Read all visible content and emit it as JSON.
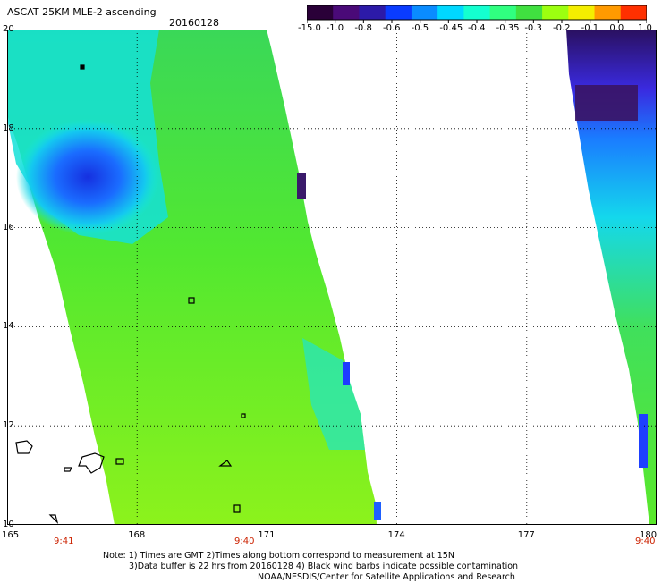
{
  "header": {
    "title": "ASCAT 25KM MLE-2 ascending",
    "date": "20160128"
  },
  "colorbar": {
    "labels": [
      "-15.0",
      "-1.0",
      "-0.8",
      "-0.6",
      "-0.5",
      "-0.45",
      "-0.4",
      "-0.35",
      "-0.3",
      "-0.2",
      "-0.1",
      "0.0",
      "1.0"
    ],
    "colors": [
      "#2a0038",
      "#4a0a78",
      "#2c1aa8",
      "#0a3cff",
      "#0a8cff",
      "#00d8ff",
      "#14ffd0",
      "#30ff80",
      "#40e040",
      "#9cff10",
      "#f4ee00",
      "#ff9a00",
      "#ff3000"
    ]
  },
  "map": {
    "lat_labels": [
      "20",
      "18",
      "16",
      "14",
      "12",
      "10"
    ],
    "lon_labels": [
      "165",
      "168",
      "171",
      "174",
      "177",
      "180"
    ],
    "pass_times": [
      "9:41",
      "9:40",
      "9:40"
    ]
  },
  "colors": {
    "green": "#5ae82a",
    "lime": "#8cf21c",
    "cyan": "#12e8e8",
    "blue": "#1e5aff",
    "purple": "#3a1870",
    "pass_time_red": "#cc2200"
  },
  "notes": [
    "Note: 1) Times are GMT 2)Times along bottom correspond to measurement at 15N",
    "3)Data buffer is 22 hrs from 20160128 4) Black wind barbs indicate possible contamination",
    "NOAA/NESDIS/Center for Satellite Applications and Research"
  ]
}
